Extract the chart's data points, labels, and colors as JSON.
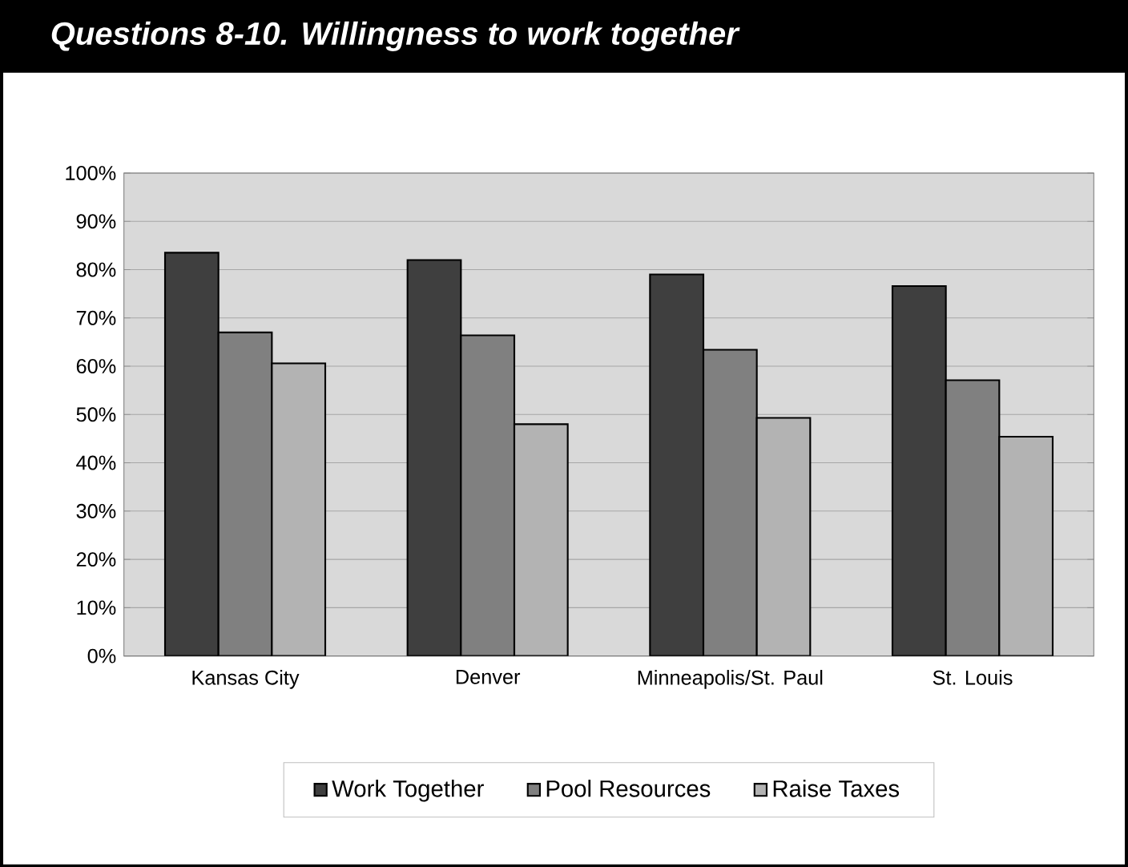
{
  "chart_data": {
    "type": "bar",
    "title": "Questions 8-10. Willingness to work together",
    "categories": [
      "Kansas City",
      "Denver",
      "Minneapolis/St. Paul",
      "St. Louis"
    ],
    "series": [
      {
        "name": "Work Together",
        "color": "#3f3f3f",
        "values": [
          83.5,
          82,
          79,
          76.6
        ]
      },
      {
        "name": "Pool Resources",
        "color": "#808080",
        "values": [
          67,
          66.4,
          63.4,
          57.1
        ]
      },
      {
        "name": "Raise Taxes",
        "color": "#b3b3b3",
        "values": [
          60.6,
          48,
          49.3,
          45.4
        ]
      }
    ],
    "ylim": [
      0,
      100
    ],
    "yticks": [
      {
        "value": 0,
        "label": "0%"
      },
      {
        "value": 10,
        "label": "10%"
      },
      {
        "value": 20,
        "label": "20%"
      },
      {
        "value": 30,
        "label": "30%"
      },
      {
        "value": 40,
        "label": "40%"
      },
      {
        "value": 50,
        "label": "50%"
      },
      {
        "value": 60,
        "label": "60%"
      },
      {
        "value": 70,
        "label": "70%"
      },
      {
        "value": 80,
        "label": "80%"
      },
      {
        "value": 90,
        "label": "90%"
      },
      {
        "value": 100,
        "label": "100%"
      }
    ],
    "grid": "y",
    "legend": "bottom"
  }
}
